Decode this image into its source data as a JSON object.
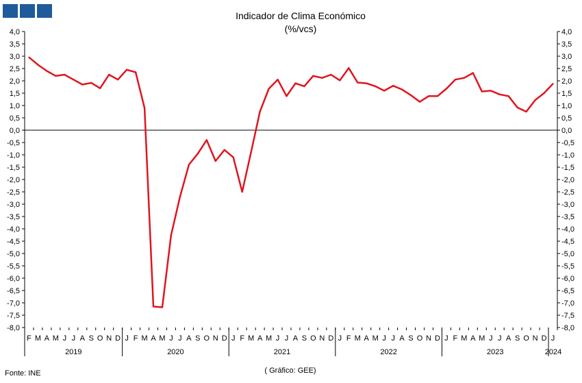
{
  "chart_data": {
    "type": "line",
    "title": "Indicador de Clima Económico",
    "subtitle": "(%/vcs)",
    "xlabel": "",
    "ylabel": "",
    "ylim": [
      -8.0,
      4.0
    ],
    "y_ticks": [
      "4,0",
      "3,5",
      "3,0",
      "2,5",
      "2,0",
      "1,5",
      "1,0",
      "0,5",
      "0,0",
      "-0,5",
      "-1,0",
      "-1,5",
      "-2,0",
      "-2,5",
      "-3,0",
      "-3,5",
      "-4,0",
      "-4,5",
      "-5,0",
      "-5,5",
      "-6,0",
      "-6,5",
      "-7,0",
      "-7,5",
      "-8,0"
    ],
    "grid": false,
    "legend": "none",
    "color": "#e0141e",
    "month_labels": [
      "F",
      "M",
      "A",
      "M",
      "J",
      "J",
      "A",
      "S",
      "O",
      "N",
      "D",
      "J",
      "F",
      "M",
      "A",
      "M",
      "J",
      "J",
      "A",
      "S",
      "O",
      "N",
      "D",
      "J",
      "F",
      "M",
      "A",
      "M",
      "J",
      "J",
      "A",
      "S",
      "O",
      "N",
      "D",
      "J",
      "F",
      "M",
      "A",
      "M",
      "J",
      "J",
      "A",
      "S",
      "O",
      "N",
      "D",
      "J",
      "F",
      "M",
      "A",
      "M",
      "J",
      "J",
      "A",
      "S",
      "O",
      "N",
      "D",
      "J"
    ],
    "years": [
      {
        "label": "2019",
        "start": 0,
        "end": 11
      },
      {
        "label": "2020",
        "start": 11,
        "end": 23
      },
      {
        "label": "2021",
        "start": 23,
        "end": 35
      },
      {
        "label": "2022",
        "start": 35,
        "end": 47
      },
      {
        "label": "2023",
        "start": 47,
        "end": 59
      },
      {
        "label": "2024",
        "start": 59,
        "end": 60
      }
    ],
    "series": [
      {
        "values": [
          2.95,
          2.65,
          2.4,
          2.2,
          2.25,
          2.05,
          1.85,
          1.92,
          1.7,
          2.25,
          2.05,
          2.45,
          2.35,
          0.9,
          -7.15,
          -7.18,
          -4.25,
          -2.7,
          -1.4,
          -0.95,
          -0.4,
          -1.25,
          -0.8,
          -1.1,
          -2.5,
          -0.9,
          0.75,
          1.68,
          2.05,
          1.38,
          1.9,
          1.78,
          2.2,
          2.12,
          2.25,
          2.02,
          2.52,
          1.93,
          1.9,
          1.78,
          1.6,
          1.8,
          1.65,
          1.42,
          1.15,
          1.38,
          1.38,
          1.68,
          2.05,
          2.12,
          2.32,
          1.57,
          1.6,
          1.45,
          1.38,
          0.92,
          0.75,
          1.22,
          1.5,
          1.88
        ]
      }
    ]
  },
  "footer": {
    "source": "Fonte: INE",
    "credit": "( Gráfico: GEE)"
  }
}
